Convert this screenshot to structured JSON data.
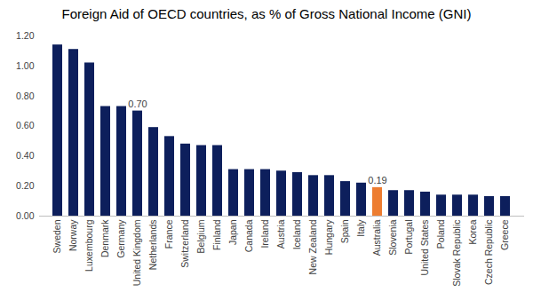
{
  "chart_data": {
    "type": "bar",
    "title": "Foreign Aid of OECD countries, as % of Gross National Income (GNI)",
    "categories": [
      "Sweden",
      "Norway",
      "Luxembourg",
      "Denmark",
      "Germany",
      "United Kingdom",
      "Netherlands",
      "France",
      "Switzerland",
      "Belgium",
      "Finland",
      "Japan",
      "Canada",
      "Ireland",
      "Austria",
      "Iceland",
      "New Zealand",
      "Hungary",
      "Spain",
      "Italy",
      "Australia",
      "Slovenia",
      "Portugal",
      "United States",
      "Poland",
      "Slovak Republic",
      "Korea",
      "Czech Republic",
      "Greece"
    ],
    "values": [
      1.14,
      1.11,
      1.02,
      0.73,
      0.73,
      0.7,
      0.59,
      0.53,
      0.48,
      0.47,
      0.47,
      0.31,
      0.31,
      0.31,
      0.3,
      0.29,
      0.27,
      0.27,
      0.23,
      0.22,
      0.19,
      0.17,
      0.17,
      0.16,
      0.14,
      0.14,
      0.14,
      0.13,
      0.13
    ],
    "value_labels": [
      null,
      null,
      null,
      null,
      null,
      "0.70",
      null,
      null,
      null,
      null,
      null,
      null,
      null,
      null,
      null,
      null,
      null,
      null,
      null,
      null,
      "0.19",
      null,
      null,
      null,
      null,
      null,
      null,
      null,
      null
    ],
    "data_labels": true,
    "colors": [
      "#0d1f5c",
      "#0d1f5c",
      "#0d1f5c",
      "#0d1f5c",
      "#0d1f5c",
      "#0d1f5c",
      "#0d1f5c",
      "#0d1f5c",
      "#0d1f5c",
      "#0d1f5c",
      "#0d1f5c",
      "#0d1f5c",
      "#0d1f5c",
      "#0d1f5c",
      "#0d1f5c",
      "#0d1f5c",
      "#0d1f5c",
      "#0d1f5c",
      "#0d1f5c",
      "#0d1f5c",
      "#ed7d31",
      "#0d1f5c",
      "#0d1f5c",
      "#0d1f5c",
      "#0d1f5c",
      "#0d1f5c",
      "#0d1f5c",
      "#0d1f5c",
      "#0d1f5c"
    ],
    "ylim": [
      0,
      1.2
    ],
    "yticks": [
      {
        "value": 0,
        "label": "0.00"
      },
      {
        "value": 0.2,
        "label": "0.20"
      },
      {
        "value": 0.4,
        "label": "0.40"
      },
      {
        "value": 0.6,
        "label": "0.60"
      },
      {
        "value": 0.8,
        "label": "0.80"
      },
      {
        "value": 1.0,
        "label": "1.00"
      },
      {
        "value": 1.2,
        "label": "1.20"
      }
    ],
    "grid": false
  }
}
